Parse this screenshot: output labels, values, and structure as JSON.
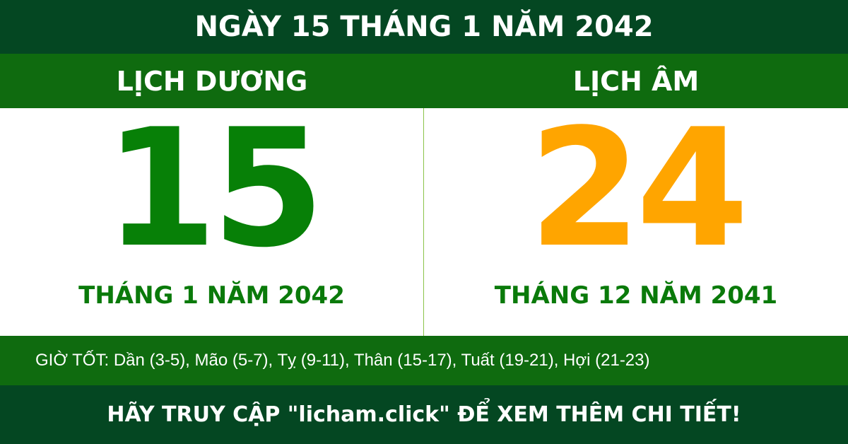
{
  "title": "NGÀY 15 THÁNG 1 NĂM 2042",
  "solar": {
    "label": "LỊCH DƯƠNG",
    "day": "15",
    "month_year": "THÁNG 1 NĂM 2042",
    "color": "#078007"
  },
  "lunar": {
    "label": "LỊCH ÂM",
    "day": "24",
    "month_year": "THÁNG 12 NĂM 2041",
    "color": "#ffa500"
  },
  "good_hours": "GIỜ TỐT: Dần (3-5), Mão (5-7), Tỵ (9-11), Thân (15-17), Tuất (19-21), Hợi (21-23)",
  "footer": "HÃY TRUY CẬP \"licham.click\" ĐỂ XEM THÊM CHI TIẾT!"
}
